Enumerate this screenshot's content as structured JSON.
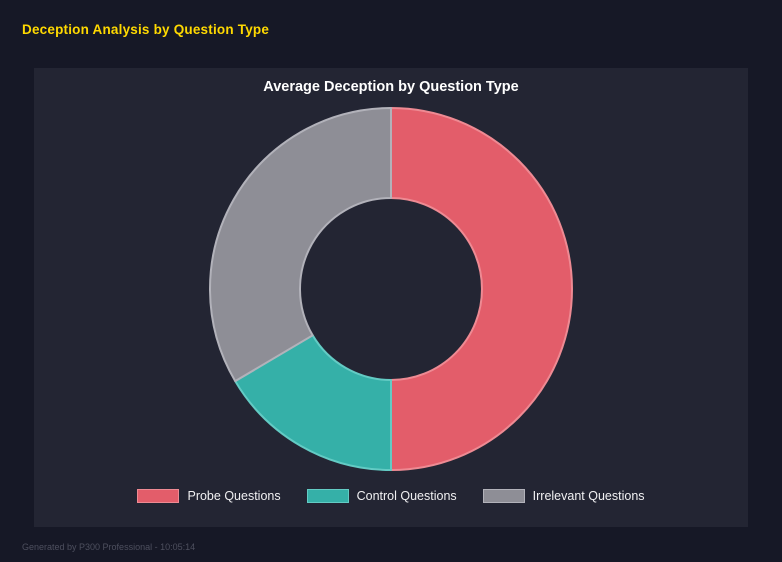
{
  "page": {
    "title": "Deception Analysis by Question Type",
    "footer": "Generated by P300 Professional - 10:05:14"
  },
  "theme": {
    "background": "#161826",
    "panel": "#232533",
    "accent_yellow": "#ffd900",
    "title_text": "#ffffff",
    "legend_text": "#f0f0f2",
    "footer_text": "#4d4f5e"
  },
  "chart_data": {
    "type": "pie",
    "subtype": "donut",
    "title": "Average Deception by Question Type",
    "legend_position": "bottom",
    "start_angle_deg": 0,
    "direction": "clockwise",
    "inner_radius_ratio": 0.5,
    "segments": [
      {
        "label": "Probe Questions",
        "value": 50,
        "color": "#e35d6a",
        "border": "#ee8a93"
      },
      {
        "label": "Control Questions",
        "value": 16.5,
        "color": "#35b0a8",
        "border": "#63cbc4"
      },
      {
        "label": "Irrelevant Questions",
        "value": 33.5,
        "color": "#8e8e96",
        "border": "#b2b2ba"
      }
    ]
  }
}
